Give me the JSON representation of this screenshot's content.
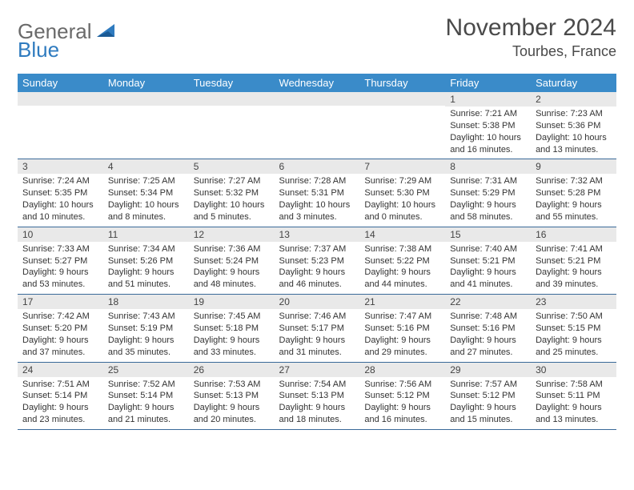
{
  "brand": {
    "part1": "General",
    "part2": "Blue"
  },
  "title": "November 2024",
  "location": "Tourbes, France",
  "colors": {
    "header_bg": "#3a8bc9",
    "header_text": "#ffffff",
    "daynum_bg": "#e9e9e9",
    "row_border": "#3a6a99",
    "logo_gray": "#6a6a6a",
    "logo_blue": "#2f7bbf"
  },
  "weekdays": [
    "Sunday",
    "Monday",
    "Tuesday",
    "Wednesday",
    "Thursday",
    "Friday",
    "Saturday"
  ],
  "weeks": [
    [
      {
        "n": "",
        "sr": "",
        "ss": "",
        "dl": ""
      },
      {
        "n": "",
        "sr": "",
        "ss": "",
        "dl": ""
      },
      {
        "n": "",
        "sr": "",
        "ss": "",
        "dl": ""
      },
      {
        "n": "",
        "sr": "",
        "ss": "",
        "dl": ""
      },
      {
        "n": "",
        "sr": "",
        "ss": "",
        "dl": ""
      },
      {
        "n": "1",
        "sr": "Sunrise: 7:21 AM",
        "ss": "Sunset: 5:38 PM",
        "dl": "Daylight: 10 hours and 16 minutes."
      },
      {
        "n": "2",
        "sr": "Sunrise: 7:23 AM",
        "ss": "Sunset: 5:36 PM",
        "dl": "Daylight: 10 hours and 13 minutes."
      }
    ],
    [
      {
        "n": "3",
        "sr": "Sunrise: 7:24 AM",
        "ss": "Sunset: 5:35 PM",
        "dl": "Daylight: 10 hours and 10 minutes."
      },
      {
        "n": "4",
        "sr": "Sunrise: 7:25 AM",
        "ss": "Sunset: 5:34 PM",
        "dl": "Daylight: 10 hours and 8 minutes."
      },
      {
        "n": "5",
        "sr": "Sunrise: 7:27 AM",
        "ss": "Sunset: 5:32 PM",
        "dl": "Daylight: 10 hours and 5 minutes."
      },
      {
        "n": "6",
        "sr": "Sunrise: 7:28 AM",
        "ss": "Sunset: 5:31 PM",
        "dl": "Daylight: 10 hours and 3 minutes."
      },
      {
        "n": "7",
        "sr": "Sunrise: 7:29 AM",
        "ss": "Sunset: 5:30 PM",
        "dl": "Daylight: 10 hours and 0 minutes."
      },
      {
        "n": "8",
        "sr": "Sunrise: 7:31 AM",
        "ss": "Sunset: 5:29 PM",
        "dl": "Daylight: 9 hours and 58 minutes."
      },
      {
        "n": "9",
        "sr": "Sunrise: 7:32 AM",
        "ss": "Sunset: 5:28 PM",
        "dl": "Daylight: 9 hours and 55 minutes."
      }
    ],
    [
      {
        "n": "10",
        "sr": "Sunrise: 7:33 AM",
        "ss": "Sunset: 5:27 PM",
        "dl": "Daylight: 9 hours and 53 minutes."
      },
      {
        "n": "11",
        "sr": "Sunrise: 7:34 AM",
        "ss": "Sunset: 5:26 PM",
        "dl": "Daylight: 9 hours and 51 minutes."
      },
      {
        "n": "12",
        "sr": "Sunrise: 7:36 AM",
        "ss": "Sunset: 5:24 PM",
        "dl": "Daylight: 9 hours and 48 minutes."
      },
      {
        "n": "13",
        "sr": "Sunrise: 7:37 AM",
        "ss": "Sunset: 5:23 PM",
        "dl": "Daylight: 9 hours and 46 minutes."
      },
      {
        "n": "14",
        "sr": "Sunrise: 7:38 AM",
        "ss": "Sunset: 5:22 PM",
        "dl": "Daylight: 9 hours and 44 minutes."
      },
      {
        "n": "15",
        "sr": "Sunrise: 7:40 AM",
        "ss": "Sunset: 5:21 PM",
        "dl": "Daylight: 9 hours and 41 minutes."
      },
      {
        "n": "16",
        "sr": "Sunrise: 7:41 AM",
        "ss": "Sunset: 5:21 PM",
        "dl": "Daylight: 9 hours and 39 minutes."
      }
    ],
    [
      {
        "n": "17",
        "sr": "Sunrise: 7:42 AM",
        "ss": "Sunset: 5:20 PM",
        "dl": "Daylight: 9 hours and 37 minutes."
      },
      {
        "n": "18",
        "sr": "Sunrise: 7:43 AM",
        "ss": "Sunset: 5:19 PM",
        "dl": "Daylight: 9 hours and 35 minutes."
      },
      {
        "n": "19",
        "sr": "Sunrise: 7:45 AM",
        "ss": "Sunset: 5:18 PM",
        "dl": "Daylight: 9 hours and 33 minutes."
      },
      {
        "n": "20",
        "sr": "Sunrise: 7:46 AM",
        "ss": "Sunset: 5:17 PM",
        "dl": "Daylight: 9 hours and 31 minutes."
      },
      {
        "n": "21",
        "sr": "Sunrise: 7:47 AM",
        "ss": "Sunset: 5:16 PM",
        "dl": "Daylight: 9 hours and 29 minutes."
      },
      {
        "n": "22",
        "sr": "Sunrise: 7:48 AM",
        "ss": "Sunset: 5:16 PM",
        "dl": "Daylight: 9 hours and 27 minutes."
      },
      {
        "n": "23",
        "sr": "Sunrise: 7:50 AM",
        "ss": "Sunset: 5:15 PM",
        "dl": "Daylight: 9 hours and 25 minutes."
      }
    ],
    [
      {
        "n": "24",
        "sr": "Sunrise: 7:51 AM",
        "ss": "Sunset: 5:14 PM",
        "dl": "Daylight: 9 hours and 23 minutes."
      },
      {
        "n": "25",
        "sr": "Sunrise: 7:52 AM",
        "ss": "Sunset: 5:14 PM",
        "dl": "Daylight: 9 hours and 21 minutes."
      },
      {
        "n": "26",
        "sr": "Sunrise: 7:53 AM",
        "ss": "Sunset: 5:13 PM",
        "dl": "Daylight: 9 hours and 20 minutes."
      },
      {
        "n": "27",
        "sr": "Sunrise: 7:54 AM",
        "ss": "Sunset: 5:13 PM",
        "dl": "Daylight: 9 hours and 18 minutes."
      },
      {
        "n": "28",
        "sr": "Sunrise: 7:56 AM",
        "ss": "Sunset: 5:12 PM",
        "dl": "Daylight: 9 hours and 16 minutes."
      },
      {
        "n": "29",
        "sr": "Sunrise: 7:57 AM",
        "ss": "Sunset: 5:12 PM",
        "dl": "Daylight: 9 hours and 15 minutes."
      },
      {
        "n": "30",
        "sr": "Sunrise: 7:58 AM",
        "ss": "Sunset: 5:11 PM",
        "dl": "Daylight: 9 hours and 13 minutes."
      }
    ]
  ]
}
